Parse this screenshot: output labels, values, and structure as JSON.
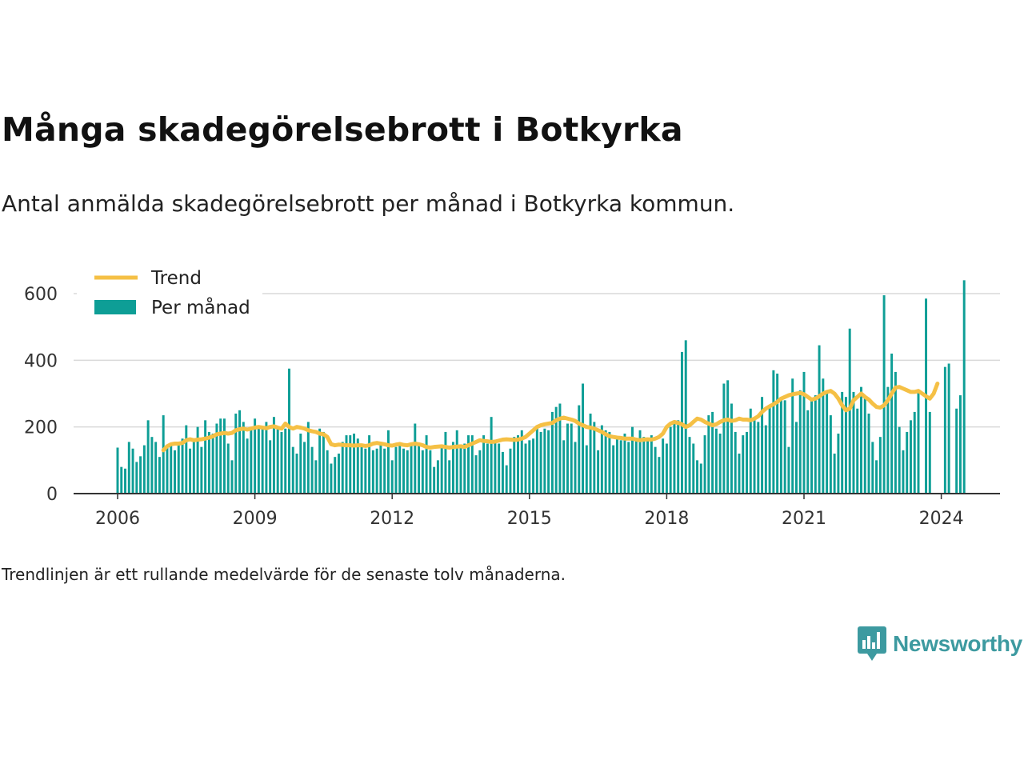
{
  "header": {
    "title": "Många skadegörelsebrott i Botkyrka",
    "subtitle": "Antal anmälda skadegörelsebrott per månad i Botkyrka kommun."
  },
  "footnote": "Trendlinjen är ett rullande medelvärde för de senaste tolv månaderna.",
  "brand": {
    "name": "Newsworthy",
    "icon": "newsworthy-logo-icon",
    "color": "#3d9aa0"
  },
  "chart_data": {
    "type": "bar",
    "title": "Många skadegörelsebrott i Botkyrka",
    "subtitle": "Antal anmälda skadegörelsebrott per månad i Botkyrka kommun.",
    "x_start": "2006-01",
    "x_ticks": [
      "2006",
      "2009",
      "2012",
      "2015",
      "2018",
      "2021",
      "2024"
    ],
    "y_ticks": [
      0,
      200,
      400,
      600
    ],
    "ylim": [
      0,
      650
    ],
    "grid": "horizontal",
    "legend_position": "top-left",
    "colors": {
      "bars": "#0e9e96",
      "trend": "#f5c045"
    },
    "series": [
      {
        "name": "Per månad",
        "type": "bar",
        "values": [
          138,
          80,
          75,
          155,
          135,
          95,
          112,
          145,
          220,
          170,
          155,
          110,
          235,
          140,
          150,
          130,
          155,
          165,
          205,
          135,
          160,
          200,
          140,
          220,
          185,
          180,
          210,
          225,
          225,
          150,
          100,
          240,
          250,
          215,
          165,
          200,
          225,
          205,
          200,
          215,
          160,
          230,
          200,
          185,
          195,
          375,
          140,
          120,
          180,
          155,
          215,
          140,
          100,
          195,
          185,
          130,
          90,
          110,
          120,
          155,
          175,
          175,
          180,
          165,
          145,
          135,
          175,
          130,
          135,
          150,
          135,
          190,
          100,
          140,
          150,
          135,
          130,
          150,
          210,
          145,
          130,
          175,
          130,
          80,
          100,
          145,
          185,
          100,
          155,
          190,
          140,
          150,
          175,
          175,
          115,
          130,
          175,
          150,
          230,
          160,
          150,
          125,
          85,
          135,
          170,
          175,
          190,
          150,
          160,
          165,
          195,
          185,
          195,
          190,
          245,
          260,
          270,
          160,
          210,
          210,
          155,
          265,
          330,
          145,
          240,
          215,
          130,
          205,
          190,
          185,
          145,
          165,
          160,
          180,
          155,
          200,
          165,
          190,
          170,
          160,
          175,
          140,
          110,
          165,
          150,
          200,
          215,
          220,
          425,
          460,
          170,
          150,
          100,
          90,
          175,
          235,
          245,
          195,
          180,
          330,
          340,
          270,
          185,
          120,
          175,
          185,
          255,
          220,
          215,
          290,
          205,
          265,
          370,
          360,
          285,
          280,
          140,
          345,
          215,
          310,
          365,
          250,
          280,
          295,
          445,
          345,
          300,
          235,
          120,
          180,
          305,
          290,
          495,
          305,
          255,
          320,
          290,
          240,
          155,
          100,
          170,
          595,
          320,
          420,
          365,
          200,
          130,
          185,
          220,
          245,
          310,
          0,
          585,
          245,
          0,
          0,
          0,
          380,
          390,
          0,
          255,
          295,
          640
        ]
      },
      {
        "name": "Trend",
        "type": "line",
        "start_index": 12,
        "values": [
          130,
          142,
          148,
          150,
          150,
          152,
          160,
          163,
          160,
          162,
          163,
          165,
          168,
          172,
          178,
          180,
          182,
          180,
          182,
          190,
          193,
          195,
          192,
          195,
          198,
          200,
          198,
          196,
          200,
          202,
          198,
          195,
          210,
          200,
          195,
          200,
          198,
          195,
          190,
          187,
          185,
          180,
          178,
          170,
          148,
          145,
          147,
          146,
          145,
          145,
          144,
          145,
          145,
          143,
          145,
          150,
          152,
          150,
          148,
          145,
          144,
          147,
          149,
          146,
          145,
          148,
          150,
          148,
          145,
          140,
          138,
          140,
          141,
          142,
          140,
          138,
          140,
          141,
          142,
          140,
          145,
          150,
          155,
          160,
          158,
          157,
          155,
          156,
          159,
          162,
          163,
          162,
          161,
          162,
          165,
          170,
          180,
          190,
          200,
          205,
          208,
          210,
          212,
          220,
          225,
          228,
          225,
          222,
          218,
          210,
          205,
          200,
          198,
          195,
          190,
          185,
          178,
          172,
          170,
          168,
          167,
          165,
          165,
          165,
          162,
          160,
          162,
          163,
          162,
          165,
          170,
          180,
          200,
          210,
          215,
          212,
          208,
          200,
          205,
          215,
          225,
          222,
          215,
          210,
          205,
          208,
          215,
          220,
          222,
          218,
          220,
          225,
          222,
          222,
          220,
          225,
          232,
          245,
          255,
          262,
          268,
          275,
          285,
          290,
          295,
          298,
          300,
          302,
          298,
          290,
          282,
          285,
          292,
          300,
          305,
          308,
          300,
          285,
          265,
          250,
          255,
          280,
          290,
          300,
          290,
          282,
          270,
          260,
          258,
          265,
          280,
          300,
          318,
          320,
          315,
          310,
          305,
          305,
          308,
          300,
          292,
          285,
          300,
          330
        ]
      }
    ]
  },
  "legend": {
    "trend_label": "Trend",
    "bars_label": "Per månad"
  }
}
